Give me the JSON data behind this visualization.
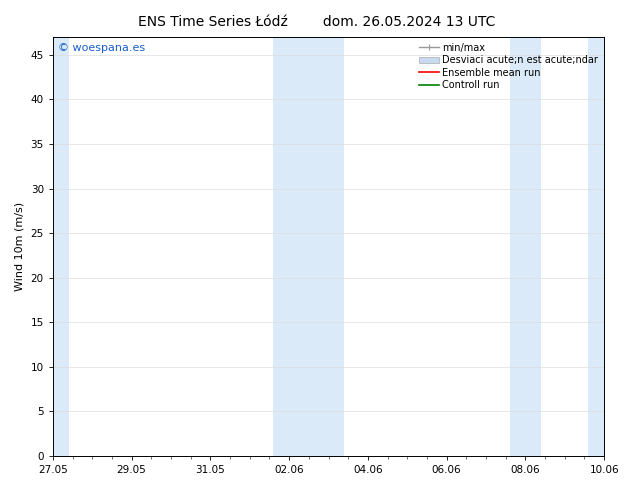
{
  "title_left": "ENS Time Series Łódź",
  "title_right": "dom. 26.05.2024 13 UTC",
  "ylabel": "Wind 10m (m/s)",
  "ylim": [
    0,
    47
  ],
  "yticks": [
    0,
    5,
    10,
    15,
    20,
    25,
    30,
    35,
    40,
    45
  ],
  "xlim": [
    0,
    14
  ],
  "xtick_labels": [
    "27.05",
    "29.05",
    "31.05",
    "02.06",
    "04.06",
    "06.06",
    "08.06",
    "10.06"
  ],
  "xtick_positions": [
    0,
    2,
    4,
    6,
    8,
    10,
    12,
    14
  ],
  "shaded_regions": [
    [
      0,
      0.4
    ],
    [
      5.6,
      7.4
    ],
    [
      11.6,
      12.4
    ],
    [
      13.6,
      14
    ]
  ],
  "shaded_color": "#daeaf8",
  "background_color": "#ffffff",
  "watermark_text": "© woespana.es",
  "watermark_color": "#1a5fcc",
  "legend_entries": [
    {
      "label": "min/max",
      "color": "#999999",
      "style": "line",
      "lw": 1.0
    },
    {
      "label": "Desviaci acute;n est acute;ndar",
      "color": "#c8daf0",
      "style": "fill"
    },
    {
      "label": "Ensemble mean run",
      "color": "#ff0000",
      "style": "line",
      "lw": 1.2
    },
    {
      "label": "Controll run",
      "color": "#008000",
      "style": "line",
      "lw": 1.2
    }
  ],
  "font_size_title": 10,
  "font_size_ylabel": 8,
  "font_size_ticks": 7.5,
  "font_size_legend": 7,
  "font_size_watermark": 8
}
